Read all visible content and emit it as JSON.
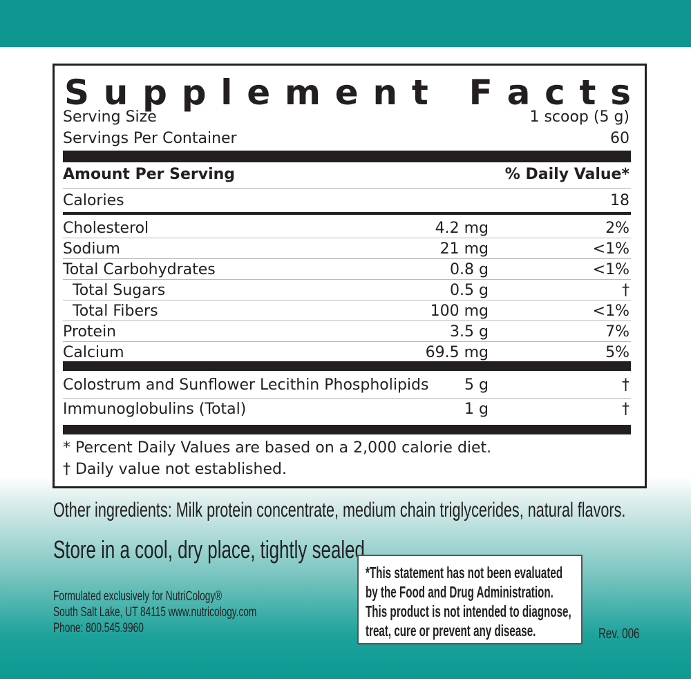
{
  "panel": {
    "title": "Supplement Facts",
    "serving_size_label": "Serving Size",
    "serving_size_value": "1 scoop (5 g)",
    "servings_label": "Servings Per Container",
    "servings_value": "60",
    "amount_header": "Amount Per Serving",
    "dv_header": "% Daily Value*",
    "calories_label": "Calories",
    "calories_value": "18",
    "nutrients": [
      {
        "name": "Cholesterol",
        "amount": "4.2 mg",
        "dv": "2%"
      },
      {
        "name": "Sodium",
        "amount": "21 mg",
        "dv": "<1%"
      },
      {
        "name": "Total Carbohydrates",
        "amount": "0.8 g",
        "dv": "<1%"
      },
      {
        "name": "Total Sugars",
        "amount": "0.5 g",
        "dv": "†"
      },
      {
        "name": "Total Fibers",
        "amount": "100 mg",
        "dv": "<1%"
      },
      {
        "name": "Protein",
        "amount": "3.5 g",
        "dv": "7%"
      },
      {
        "name": "Calcium",
        "amount": "69.5 mg",
        "dv": "5%"
      }
    ],
    "other": [
      {
        "name": "Colostrum and Sunflower Lecithin Phospholipids",
        "amount": "5 g",
        "dv": "†"
      },
      {
        "name": "Immunoglobulins (Total)",
        "amount": "1 g",
        "dv": "†"
      }
    ],
    "footnote1": "* Percent Daily Values are based on a 2,000 calorie diet.",
    "footnote2": "† Daily value not established."
  },
  "other_ingredients": "Other ingredients: Milk protein concentrate, medium chain triglycerides, natural flavors.",
  "storage": "Store in a cool, dry place, tightly sealed.",
  "manufacturer": {
    "line1": "Formulated exclusively for NutriCology®",
    "line2": "South Salt Lake, UT 84115  www.nutricology.com",
    "line3": "Phone: 800.545.9960"
  },
  "fda": {
    "line1": "*This statement has not been evaluated",
    "line2": "by the Food and Drug Administration.",
    "line3": "This product is not intended to diagnose,",
    "line4": "treat, cure or prevent any disease."
  },
  "revision": "Rev. 006",
  "colors": {
    "teal": "#0e9690",
    "text": "#231f20"
  }
}
